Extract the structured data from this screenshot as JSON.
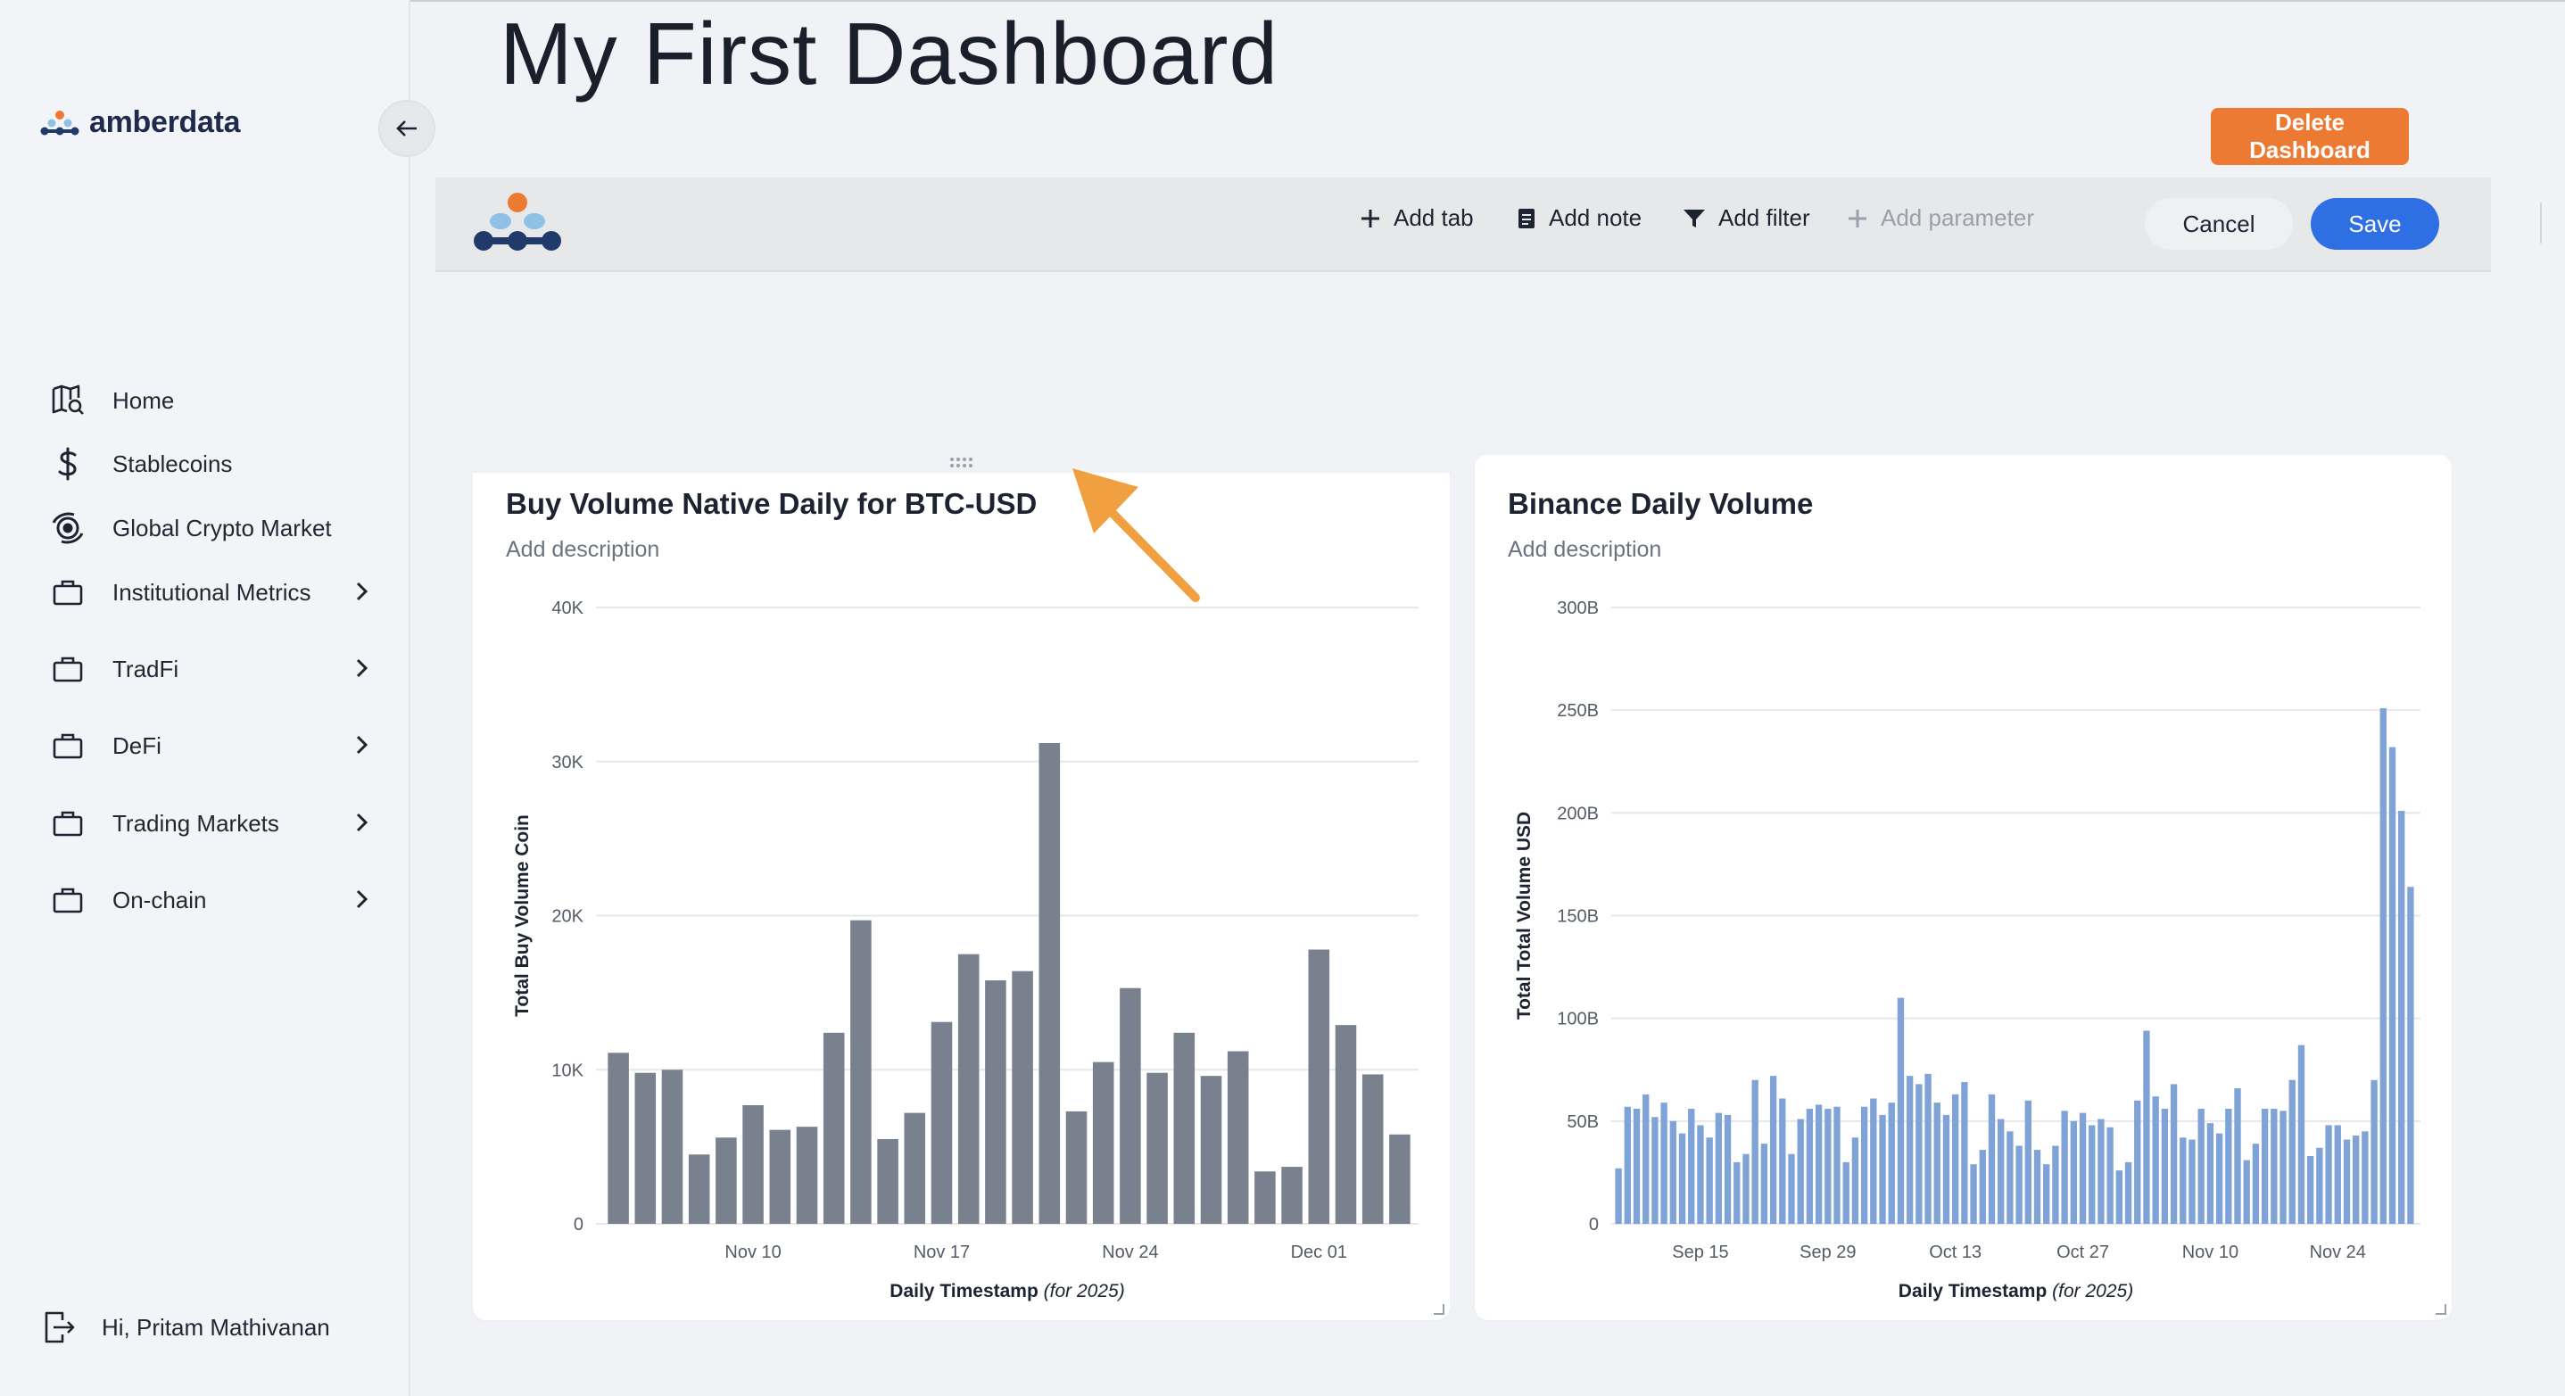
{
  "app": {
    "brand_name": "amberdata",
    "page_title": "My First Dashboard"
  },
  "sidebar": {
    "items": [
      {
        "label": "Home",
        "icon": "map-search-icon",
        "expandable": false
      },
      {
        "label": "Stablecoins",
        "icon": "dollar-icon",
        "expandable": false
      },
      {
        "label": "Global Crypto Market",
        "icon": "globe-icon",
        "expandable": false
      },
      {
        "label": "Institutional Metrics",
        "icon": "briefcase-icon",
        "expandable": true
      },
      {
        "label": "TradFi",
        "icon": "briefcase-icon",
        "expandable": true
      },
      {
        "label": "DeFi",
        "icon": "briefcase-icon",
        "expandable": true
      },
      {
        "label": "Trading Markets",
        "icon": "briefcase-icon",
        "expandable": true
      },
      {
        "label": "On-chain",
        "icon": "briefcase-icon",
        "expandable": true
      }
    ],
    "user_greeting": "Hi, Pritam Mathivanan"
  },
  "header": {
    "delete_label": "Delete Dashboard"
  },
  "toolbar": {
    "add_tab": "Add tab",
    "add_note": "Add note",
    "add_filter": "Add filter",
    "add_parameter": "Add parameter",
    "cancel": "Cancel",
    "save": "Save"
  },
  "colors": {
    "accent_orange": "#ec7a33",
    "primary_blue": "#2f6fe4",
    "bar_gray": "#7a818e",
    "bar_blue": "#7fa3d6"
  },
  "chart_data": [
    {
      "type": "bar",
      "title": "Buy Volume Native Daily for BTC-USD",
      "description": "Add description",
      "ylabel": "Total Buy Volume Coin",
      "xlabel": "Daily Timestamp",
      "xlabel_note": "(for 2025)",
      "ylim": [
        0,
        40000
      ],
      "yticks": [
        0,
        10000,
        20000,
        30000,
        40000
      ],
      "ytick_labels": [
        "0",
        "10K",
        "20K",
        "30K",
        "40K"
      ],
      "xtick_labels": [
        {
          "label": "Nov 10",
          "index": 5
        },
        {
          "label": "Nov 17",
          "index": 12
        },
        {
          "label": "Nov 24",
          "index": 19
        },
        {
          "label": "Dec 01",
          "index": 26
        }
      ],
      "values": [
        11100,
        9800,
        10000,
        4500,
        5600,
        7700,
        6100,
        6300,
        12400,
        19700,
        5500,
        7200,
        13100,
        17500,
        15800,
        16400,
        31200,
        7300,
        10500,
        15300,
        9800,
        12400,
        9600,
        11200,
        3400,
        3700,
        17800,
        12900,
        9700,
        5800
      ],
      "color": "#7a818e"
    },
    {
      "type": "bar",
      "title": "Binance Daily Volume",
      "description": "Add description",
      "ylabel": "Total Total Volume USD",
      "xlabel": "Daily Timestamp",
      "xlabel_note": "(for 2025)",
      "ylim": [
        0,
        300
      ],
      "yunit": "B",
      "yticks": [
        0,
        50,
        100,
        150,
        200,
        250,
        300
      ],
      "ytick_labels": [
        "0",
        "50B",
        "100B",
        "150B",
        "200B",
        "250B",
        "300B"
      ],
      "xtick_labels": [
        {
          "label": "Sep 15",
          "index": 9
        },
        {
          "label": "Sep 29",
          "index": 23
        },
        {
          "label": "Oct 13",
          "index": 37
        },
        {
          "label": "Oct 27",
          "index": 51
        },
        {
          "label": "Nov 10",
          "index": 65
        },
        {
          "label": "Nov 24",
          "index": 79
        }
      ],
      "values": [
        27,
        57,
        56,
        63,
        52,
        59,
        50,
        44,
        56,
        48,
        42,
        54,
        53,
        30,
        34,
        70,
        39,
        72,
        61,
        34,
        51,
        56,
        58,
        56,
        57,
        30,
        42,
        57,
        61,
        53,
        59,
        110,
        72,
        68,
        73,
        59,
        53,
        63,
        69,
        29,
        36,
        63,
        51,
        45,
        38,
        60,
        36,
        29,
        38,
        55,
        50,
        54,
        48,
        51,
        47,
        26,
        30,
        60,
        94,
        62,
        56,
        68,
        42,
        41,
        56,
        49,
        44,
        56,
        66,
        31,
        39,
        56,
        56,
        55,
        70,
        87,
        33,
        37,
        48,
        48,
        41,
        43,
        45,
        70,
        251,
        232,
        201,
        164
      ],
      "color": "#7fa3d6"
    }
  ]
}
